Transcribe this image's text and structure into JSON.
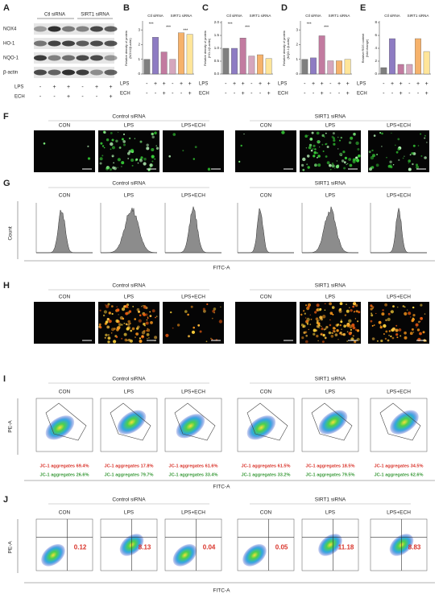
{
  "panel_a": {
    "label": "A",
    "groups": [
      "Ctl siRNA",
      "SIRT1 siRNA"
    ],
    "proteins": [
      "NOX4",
      "HO-1",
      "NQO-1",
      "β-actin"
    ],
    "treatments": [
      {
        "name": "LPS",
        "signs": [
          "-",
          "+",
          "+",
          "-",
          "+",
          "+"
        ]
      },
      {
        "name": "ECH",
        "signs": [
          "-",
          "-",
          "+",
          "-",
          "-",
          "+"
        ]
      }
    ]
  },
  "chart_data": [
    {
      "type": "bar",
      "panel": "B",
      "groups": [
        "Ctl siRNA",
        "SIRT1 siRNA"
      ],
      "y_label": [
        "Relative density of protein",
        "(NOX4/β-actin)"
      ],
      "values": [
        1.0,
        2.5,
        1.5,
        1.0,
        2.8,
        2.7
      ],
      "colors": [
        "#7f7f7f",
        "#8e7cc3",
        "#c27ba0",
        "#d5a6bd",
        "#f6b26b",
        "#ffe599"
      ],
      "ylim": [
        0,
        3.5
      ],
      "yticks": [
        0,
        1,
        2,
        3
      ],
      "annotations": [
        "***",
        "***",
        "***"
      ],
      "treatments": [
        {
          "name": "LPS",
          "signs": [
            "-",
            "+",
            "+",
            "-",
            "+",
            "+"
          ]
        },
        {
          "name": "ECH",
          "signs": [
            "-",
            "-",
            "+",
            "-",
            "-",
            "+"
          ]
        }
      ]
    },
    {
      "type": "bar",
      "panel": "C",
      "groups": [
        "Ctl siRNA",
        "SIRT1 siRNA"
      ],
      "y_label": [
        "Relative density of protein",
        "(HO-1/β-actin)"
      ],
      "values": [
        1.0,
        1.0,
        1.4,
        0.7,
        0.75,
        0.6
      ],
      "colors": [
        "#7f7f7f",
        "#8e7cc3",
        "#c27ba0",
        "#d5a6bd",
        "#f6b26b",
        "#ffe599"
      ],
      "ylim": [
        0,
        2
      ],
      "yticks": [
        {
          "value": 0,
          "label": "0.0"
        },
        0.5,
        {
          "value": 1,
          "label": "1.0"
        },
        1.5,
        {
          "value": 2,
          "label": "2.0"
        }
      ],
      "annotations": [
        "***",
        "***"
      ],
      "treatments": [
        {
          "name": "LPS",
          "signs": [
            "-",
            "+",
            "+",
            "-",
            "+",
            "+"
          ]
        },
        {
          "name": "ECH",
          "signs": [
            "-",
            "-",
            "+",
            "-",
            "-",
            "+"
          ]
        }
      ]
    },
    {
      "type": "bar",
      "panel": "D",
      "groups": [
        "Ctl siRNA",
        "SIRT1 siRNA"
      ],
      "y_label": [
        "Relative density of protein",
        "(NQO-1/β-actin)"
      ],
      "values": [
        1.0,
        1.1,
        2.6,
        0.9,
        0.9,
        1.0
      ],
      "colors": [
        "#7f7f7f",
        "#8e7cc3",
        "#c27ba0",
        "#d5a6bd",
        "#f6b26b",
        "#ffe599"
      ],
      "ylim": [
        0,
        3.5
      ],
      "yticks": [
        0,
        1,
        2,
        3
      ],
      "annotations": [
        "***",
        "***"
      ],
      "treatments": [
        {
          "name": "LPS",
          "signs": [
            "-",
            "+",
            "+",
            "-",
            "+",
            "+"
          ]
        },
        {
          "name": "ECH",
          "signs": [
            "-",
            "-",
            "+",
            "-",
            "-",
            "+"
          ]
        }
      ]
    },
    {
      "type": "bar",
      "panel": "E",
      "groups": [
        "Ctl siRNA",
        "SIRT1 siRNA"
      ],
      "y_label": [
        "Relative ROS content",
        "(fold change)"
      ],
      "values": [
        1.0,
        5.5,
        1.5,
        1.5,
        5.5,
        3.5
      ],
      "colors": [
        "#7f7f7f",
        "#8e7cc3",
        "#c27ba0",
        "#d5a6bd",
        "#f6b26b",
        "#ffe599"
      ],
      "ylim": [
        0,
        8
      ],
      "yticks": [
        0,
        2,
        4,
        6,
        8
      ],
      "annotations": [],
      "treatments": [
        {
          "name": "LPS",
          "signs": [
            "-",
            "+",
            "+",
            "-",
            "+",
            "+"
          ]
        },
        {
          "name": "ECH",
          "signs": [
            "-",
            "-",
            "+",
            "-",
            "-",
            "+"
          ]
        }
      ]
    }
  ],
  "panel_f": {
    "label": "F",
    "groups": [
      "Control siRNA",
      "SIRT1 siRNA"
    ],
    "conditions": [
      "CON",
      "LPS",
      "LPS+ECH"
    ]
  },
  "panel_g": {
    "label": "G",
    "groups": [
      "Control siRNA",
      "SIRT1 siRNA"
    ],
    "conditions": [
      "CON",
      "LPS",
      "LPS+ECH"
    ],
    "y_label": "Count",
    "x_label": "FITC-A"
  },
  "panel_h": {
    "label": "H",
    "groups": [
      "Control siRNA",
      "SIRT1 siRNA"
    ],
    "conditions": [
      "CON",
      "LPS",
      "LPS+ECH"
    ]
  },
  "panel_i": {
    "label": "I",
    "groups": [
      "Control siRNA",
      "SIRT1 siRNA"
    ],
    "conditions": [
      "CON",
      "LPS",
      "LPS+ECH"
    ],
    "y_label": "PE-A",
    "x_label": "FITC-A",
    "aggregates_red": [
      "JC-1 aggregates 69.4%",
      "JC-1 aggregates 17.8%",
      "JC-1 aggregates 61.6%",
      "JC-1 aggregates 61.5%",
      "JC-1 aggregates 18.5%",
      "JC-1 aggregates 34.5%"
    ],
    "aggregates_green": [
      "JC-1 aggregates 26.6%",
      "JC-1 aggregates 79.7%",
      "JC-1 aggregates 33.4%",
      "JC-1 aggregates 33.2%",
      "JC-1 aggregates 79.5%",
      "JC-1 aggregates 62.6%"
    ]
  },
  "panel_j": {
    "label": "J",
    "groups": [
      "Control siRNA",
      "SIRT1 siRNA"
    ],
    "conditions": [
      "CON",
      "LPS",
      "LPS+ECH"
    ],
    "y_label": "PE-A",
    "x_label": "FITC-A",
    "percentages": [
      "0.12",
      "8.13",
      "0.04",
      "0.05",
      "11.18",
      "8.83"
    ]
  }
}
